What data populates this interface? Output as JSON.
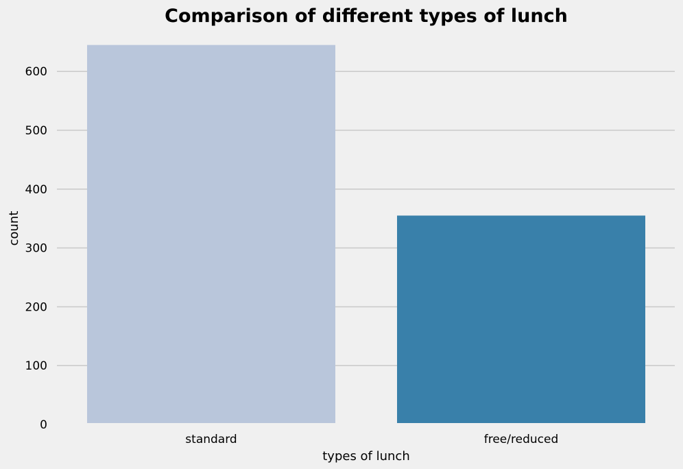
{
  "chart_data": {
    "type": "bar",
    "title": "Comparison of different types of lunch",
    "xlabel": "types of lunch",
    "ylabel": "count",
    "categories": [
      "standard",
      "free/reduced"
    ],
    "values": [
      645,
      355
    ],
    "colors": [
      "#b9c6db",
      "#3980aa"
    ],
    "ylim": [
      0,
      650
    ],
    "yticks": [
      0,
      100,
      200,
      300,
      400,
      500,
      600
    ],
    "grid": "horizontal",
    "legend": "none",
    "background": "#f0f0f0",
    "grid_color": "#cbcbcb"
  }
}
